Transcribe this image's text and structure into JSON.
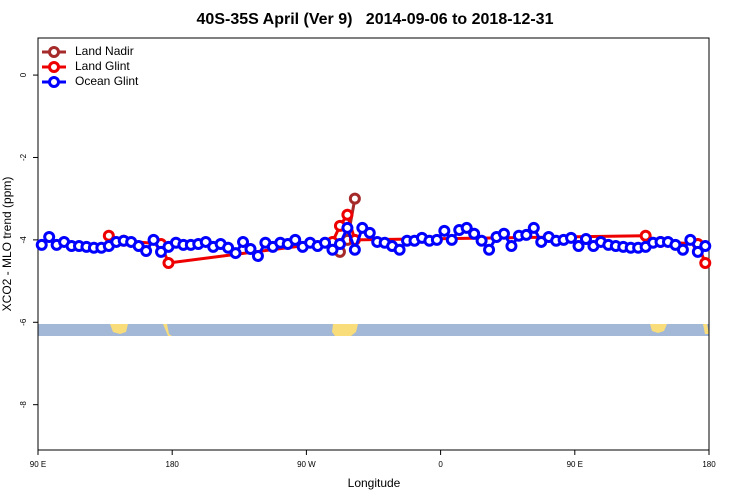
{
  "chart_data": {
    "type": "line",
    "title": "40S-35S April (Ver 9)   2014-09-06 to 2018-12-31",
    "x_label": "Longitude",
    "y_label": "XCO2 - MLO trend (ppm)",
    "xlim": [
      90,
      540
    ],
    "xticks": [
      {
        "value": 90,
        "label": "90 E"
      },
      180,
      {
        "value": 270,
        "label": "90 W"
      },
      {
        "value": 360,
        "label": "0"
      },
      {
        "value": 450,
        "label": "90 E"
      },
      {
        "value": 540,
        "label": "180"
      }
    ],
    "ylim": [
      -9.1,
      0.9
    ],
    "yticks": [
      0,
      -2,
      -4,
      -6,
      -8
    ],
    "legend": "top-left",
    "x": [
      92.5,
      97.5,
      102.5,
      107.5,
      112.5,
      117.5,
      122.5,
      127.5,
      132.5,
      137.5,
      142.5,
      147.5,
      152.5,
      157.5,
      162.5,
      167.5,
      172.5,
      177.5,
      182.5,
      187.5,
      192.5,
      197.5,
      202.5,
      207.5,
      212.5,
      217.5,
      222.5,
      227.5,
      232.5,
      237.5,
      242.5,
      247.5,
      252.5,
      257.5,
      262.5,
      267.5,
      272.5,
      277.5,
      282.5,
      287.5,
      292.5,
      297.5,
      302.5,
      307.5,
      312.5,
      317.5,
      322.5,
      327.5,
      332.5,
      337.5,
      342.5,
      347.5,
      352.5,
      357.5,
      362.5,
      367.5,
      372.5,
      377.5,
      382.5,
      387.5,
      392.5,
      397.5,
      402.5,
      407.5,
      412.5,
      417.5,
      422.5,
      427.5,
      432.5,
      437.5,
      442.5,
      447.5,
      452.5,
      457.5,
      462.5,
      467.5,
      472.5,
      477.5,
      482.5,
      487.5,
      492.5,
      497.5,
      502.5,
      507.5,
      512.5,
      517.5,
      522.5,
      527.5,
      532.5,
      537.5
    ],
    "series": [
      {
        "name": "Land Nadir",
        "color": "#a52a2a",
        "x": [
          292.5,
          297.5,
          302.5
        ],
        "values": [
          -4.29,
          -4.0,
          -3.0
        ]
      },
      {
        "name": "Land Glint",
        "color": "#ee0000",
        "x": [
          137.5,
          147.5,
          172.5,
          177.5,
          287.5,
          292.5,
          297.5,
          302.5,
          497.5,
          507.5,
          532.5,
          537.5
        ],
        "values": [
          -3.9,
          -4.02,
          -4.1,
          -4.56,
          -4.05,
          -3.66,
          -3.39,
          -4.0,
          -3.9,
          -4.05,
          -4.1,
          -4.56
        ]
      },
      {
        "name": "Ocean Glint",
        "color": "#0000ff",
        "values": [
          -4.12,
          -3.93,
          -4.12,
          -4.05,
          -4.15,
          -4.15,
          -4.17,
          -4.19,
          -4.19,
          -4.15,
          -4.05,
          -4.02,
          -4.05,
          -4.15,
          -4.27,
          -4.0,
          -4.29,
          -4.17,
          -4.07,
          -4.12,
          -4.12,
          -4.1,
          -4.05,
          -4.17,
          -4.1,
          -4.19,
          -4.32,
          -4.05,
          -4.22,
          -4.39,
          -4.07,
          -4.17,
          -4.07,
          -4.1,
          -4.0,
          -4.17,
          -4.07,
          -4.15,
          -4.07,
          -4.24,
          -4.1,
          -3.71,
          -4.24,
          -3.71,
          -3.83,
          -4.05,
          -4.07,
          -4.15,
          -4.24,
          -4.02,
          -4.02,
          -3.95,
          -4.02,
          -4.0,
          -3.78,
          -4.0,
          -3.76,
          -3.71,
          -3.85,
          -4.02,
          -4.24,
          -3.93,
          -3.85,
          -4.15,
          -3.9,
          -3.88,
          -3.71,
          -4.05,
          -3.93,
          -4.02,
          -4.0,
          -3.95,
          -4.15,
          -3.98,
          -4.15,
          -4.05,
          -4.12,
          -4.15,
          -4.17,
          -4.19,
          -4.19,
          -4.17,
          -4.07,
          -4.05,
          -4.05,
          -4.12,
          -4.24,
          -4.0,
          -4.29,
          -4.15
        ]
      }
    ]
  }
}
